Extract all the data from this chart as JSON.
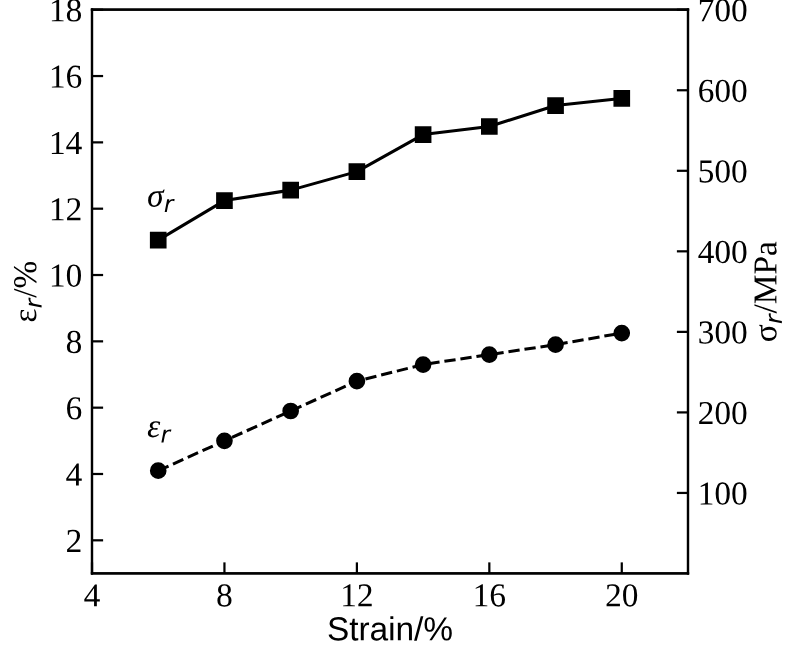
{
  "chart_data": {
    "type": "line",
    "xlabel": "Strain/%",
    "ylabel": "ε$_{r}$/%",
    "y2label": "σ$_{r}$/MPa",
    "x": [
      6,
      8,
      10,
      12,
      14,
      16,
      18,
      20
    ],
    "series": [
      {
        "name": "σ$_{r}$",
        "color": "#000000",
        "axis": "y2",
        "marker": "square",
        "line_style": "solid",
        "values": [
          414,
          463,
          476,
          499,
          545,
          555,
          581,
          590
        ]
      },
      {
        "name": "ε$_{r}$",
        "color": "#000000",
        "marker": "circle",
        "line_style": "dashed",
        "values": [
          4.1,
          5.0,
          5.9,
          6.8,
          7.3,
          7.6,
          7.9,
          8.25
        ]
      }
    ],
    "xlim": [
      4,
      22
    ],
    "xticks": [
      4,
      8,
      12,
      16,
      20
    ],
    "ylim": [
      1,
      18
    ],
    "yticks": [
      2,
      4,
      6,
      8,
      10,
      12,
      14,
      16,
      18
    ],
    "y2lim": [
      0,
      700
    ],
    "y2ticks": [
      100,
      200,
      300,
      400,
      500,
      600,
      700
    ],
    "grid": false,
    "legend": false
  }
}
